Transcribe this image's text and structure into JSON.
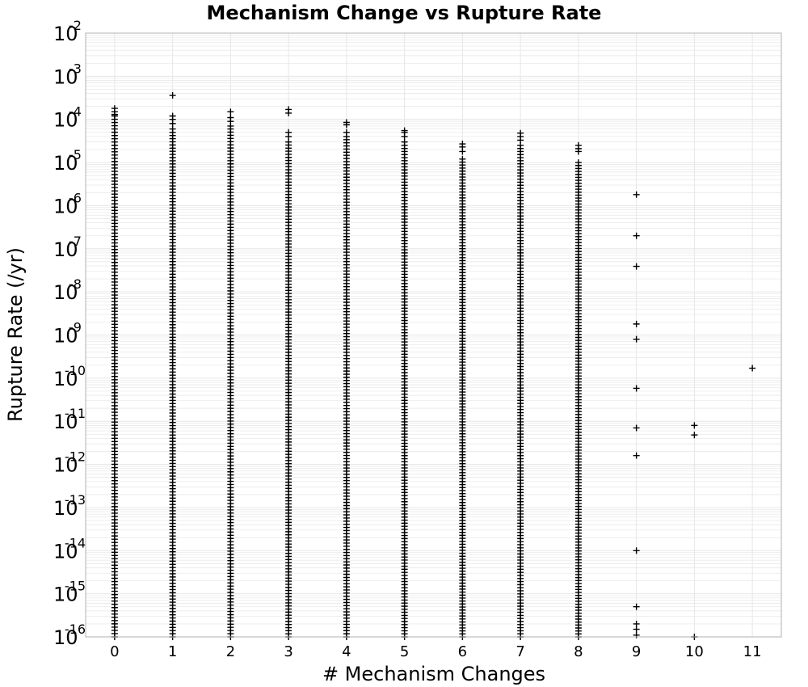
{
  "chart_data": {
    "type": "scatter",
    "title": "Mechanism Change vs Rupture Rate",
    "xlabel": "# Mechanism Changes",
    "ylabel": "Rupture Rate (/yr)",
    "x_ticks": [
      "0",
      "1",
      "2",
      "3",
      "4",
      "5",
      "6",
      "7",
      "8",
      "9",
      "10",
      "11"
    ],
    "xlim": [
      -0.5,
      11.5
    ],
    "y_scale": "log",
    "ylim": [
      1e-16,
      0.01
    ],
    "y_tick_labels": [
      {
        "base": "10",
        "exp": "-2"
      },
      {
        "base": "10",
        "exp": "-3"
      },
      {
        "base": "10",
        "exp": "-4"
      },
      {
        "base": "10",
        "exp": "-5"
      },
      {
        "base": "10",
        "exp": "-6"
      },
      {
        "base": "10",
        "exp": "-7"
      },
      {
        "base": "10",
        "exp": "-8"
      },
      {
        "base": "10",
        "exp": "-9"
      },
      {
        "base": "10",
        "exp": "-10"
      },
      {
        "base": "10",
        "exp": "-11"
      },
      {
        "base": "10",
        "exp": "-12"
      },
      {
        "base": "10",
        "exp": "-13"
      },
      {
        "base": "10",
        "exp": "-14"
      },
      {
        "base": "10",
        "exp": "-15"
      },
      {
        "base": "10",
        "exp": "-16"
      }
    ],
    "grid": true,
    "marker": "plus",
    "marker_color": "#000000",
    "grid_color": "#e6e6e6",
    "columns": [
      {
        "x": 0,
        "dense_range": [
          1e-16,
          0.00012
        ],
        "points": [
          0.00018,
          0.00015,
          0.00013
        ]
      },
      {
        "x": 1,
        "dense_range": [
          1e-16,
          5e-05
        ],
        "points": [
          0.00036,
          0.00012,
          0.0001,
          8e-05,
          6e-05
        ]
      },
      {
        "x": 2,
        "dense_range": [
          1e-16,
          6e-05
        ],
        "points": [
          0.00015,
          0.00011,
          9e-05,
          7e-05
        ]
      },
      {
        "x": 3,
        "dense_range": [
          1e-16,
          3e-05
        ],
        "points": [
          0.00017,
          0.00014,
          5e-05,
          4e-05
        ]
      },
      {
        "x": 4,
        "dense_range": [
          1e-16,
          4e-05
        ],
        "points": [
          8.5e-05,
          7.5e-05,
          5e-05
        ]
      },
      {
        "x": 5,
        "dense_range": [
          1e-16,
          2.5e-05
        ],
        "points": [
          5.5e-05,
          5e-05,
          4e-05,
          3e-05
        ]
      },
      {
        "x": 6,
        "dense_range": [
          1e-16,
          1.2e-05
        ],
        "points": [
          2.7e-05,
          2.3e-05,
          1.8e-05
        ]
      },
      {
        "x": 7,
        "dense_range": [
          1e-16,
          2.5e-05
        ],
        "points": [
          4.8e-05,
          4e-05,
          3.3e-05
        ]
      },
      {
        "x": 8,
        "dense_range": [
          1e-16,
          1e-05
        ],
        "points": [
          2.5e-05,
          2.1e-05,
          1.8e-05
        ]
      },
      {
        "x": 9,
        "dense_range": null,
        "points": [
          1.8e-06,
          2e-07,
          3.9e-08,
          1.8e-09,
          8e-10,
          5.8e-11,
          7e-12,
          1.6e-12,
          1e-14,
          5e-16,
          2e-16,
          1.5e-16,
          1.1e-16
        ]
      },
      {
        "x": 10,
        "dense_range": null,
        "points": [
          8e-12,
          4.8e-12,
          1e-16
        ]
      },
      {
        "x": 11,
        "dense_range": null,
        "points": [
          1.7e-10
        ]
      }
    ]
  }
}
